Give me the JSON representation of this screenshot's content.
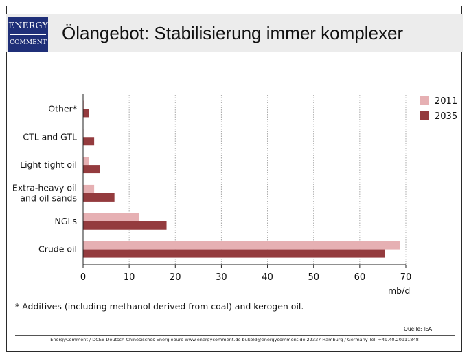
{
  "slide": {
    "title": "Ölangebot: Stabilisierung immer komplexer",
    "logo_line1": "ENERGY",
    "logo_line2": "COMMENT",
    "footnote": "* Additives (including methanol derived from coal) and kerogen oil.",
    "source": "Quelle: IEA",
    "footer": {
      "org": "EnergyComment / DCEB Deutsch-Chinesisches Energiebüro",
      "website": "www.energycomment.de",
      "email": "bukold@energycomment.de",
      "address": "22337 Hamburg / Germany",
      "phone": "Tel. +49.40.20911848"
    }
  },
  "colors": {
    "series_2011": "#e6b0b3",
    "series_2035": "#943b3e",
    "logo_bg": "#1f2f78",
    "title_band": "#ececec"
  },
  "chart_data": {
    "type": "bar",
    "orientation": "horizontal",
    "categories": [
      "Other*",
      "CTL and GTL",
      "Light tight oil",
      "Extra-heavy oil\nand oil sands",
      "NGLs",
      "Crude oil"
    ],
    "series": [
      {
        "name": "2011",
        "values": [
          0.2,
          0.1,
          1.2,
          2.4,
          12.2,
          68.7
        ]
      },
      {
        "name": "2035",
        "values": [
          1.2,
          2.4,
          3.6,
          6.8,
          18.1,
          65.4
        ]
      }
    ],
    "x_ticks": [
      0,
      10,
      20,
      30,
      40,
      50,
      60,
      70
    ],
    "xlim": [
      0,
      70
    ],
    "xlabel": "mb/d",
    "ylabel": "",
    "grid": "vertical dotted",
    "legend_position": "top-right"
  }
}
